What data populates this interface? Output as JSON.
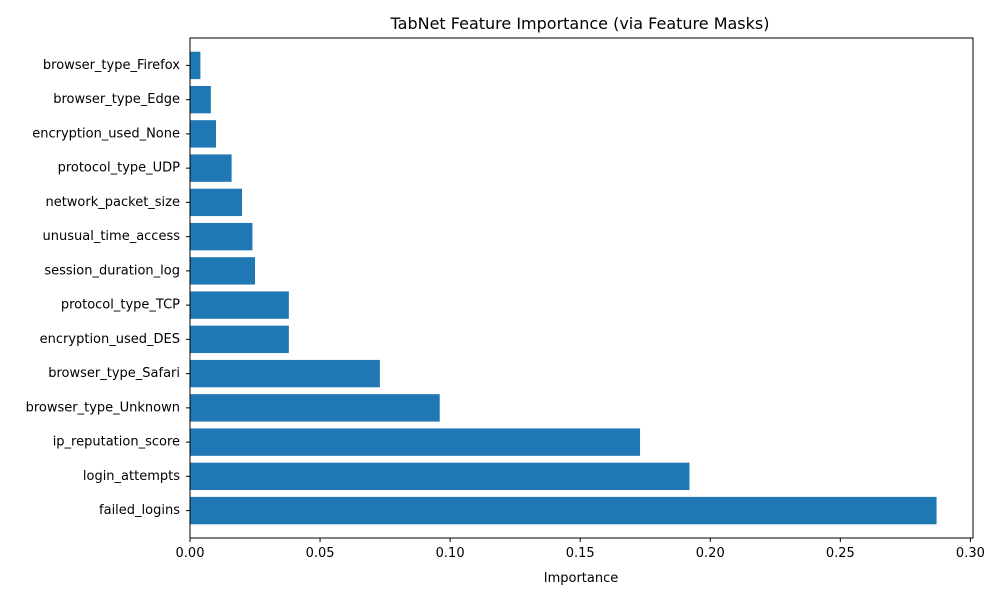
{
  "chart_data": {
    "type": "bar",
    "orientation": "horizontal",
    "title": "TabNet Feature Importance (via Feature Masks)",
    "xlabel": "Importance",
    "ylabel": "",
    "xlim": [
      0,
      0.301
    ],
    "xticks": [
      0.0,
      0.05,
      0.1,
      0.15,
      0.2,
      0.25,
      0.3
    ],
    "xtick_labels": [
      "0.00",
      "0.05",
      "0.10",
      "0.15",
      "0.20",
      "0.25",
      "0.30"
    ],
    "categories": [
      "failed_logins",
      "login_attempts",
      "ip_reputation_score",
      "browser_type_Unknown",
      "browser_type_Safari",
      "encryption_used_DES",
      "protocol_type_TCP",
      "session_duration_log",
      "unusual_time_access",
      "network_packet_size",
      "protocol_type_UDP",
      "encryption_used_None",
      "browser_type_Edge",
      "browser_type_Firefox"
    ],
    "values": [
      0.287,
      0.192,
      0.173,
      0.096,
      0.073,
      0.038,
      0.038,
      0.025,
      0.024,
      0.02,
      0.016,
      0.01,
      0.008,
      0.004
    ],
    "grid": false,
    "legend": "none",
    "bar_color": "#1f77b4"
  }
}
